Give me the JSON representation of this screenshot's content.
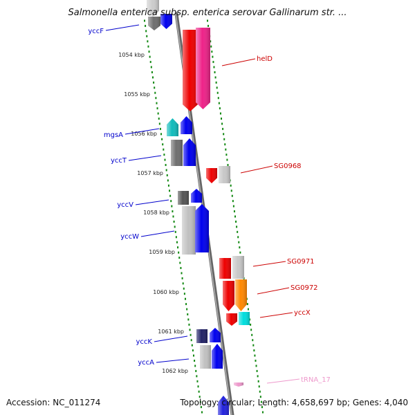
{
  "header": {
    "title": "Salmonella enterica subsp. enterica serovar Gallinarum str. ..."
  },
  "footer": {
    "accession": "Accession: NC_011274",
    "summary": "Topology: circular; Length: 4,658,697 bp; Genes: 4,040"
  },
  "colors": {
    "reverse_label": "#0000cc",
    "forward_label": "#cc0000",
    "trna_label": "#ee99cc",
    "tick": "#118811",
    "backbone": "#888888"
  },
  "scale_labels": [
    "1054 kbp",
    "1055 kbp",
    "1056 kbp",
    "1057 kbp",
    "1058 kbp",
    "1059 kbp",
    "1060 kbp",
    "1061 kbp",
    "1062 kbp"
  ],
  "gene_labels": [
    {
      "name": "yccF",
      "strand": "reverse"
    },
    {
      "name": "helD",
      "strand": "forward"
    },
    {
      "name": "mgsA",
      "strand": "reverse"
    },
    {
      "name": "yccT",
      "strand": "reverse"
    },
    {
      "name": "SG0968",
      "strand": "forward"
    },
    {
      "name": "yccV",
      "strand": "reverse"
    },
    {
      "name": "yccW",
      "strand": "reverse"
    },
    {
      "name": "SG0971",
      "strand": "forward"
    },
    {
      "name": "SG0972",
      "strand": "forward"
    },
    {
      "name": "yccX",
      "strand": "forward"
    },
    {
      "name": "yccK",
      "strand": "reverse"
    },
    {
      "name": "yccA",
      "strand": "reverse"
    },
    {
      "name": "tRNA_17",
      "strand": "trna"
    }
  ],
  "features": [
    {
      "id": "yccF-gray",
      "color": "#6e6e6e",
      "direction": "down"
    },
    {
      "id": "yccF-blue",
      "color": "#0000ee",
      "direction": "down"
    },
    {
      "id": "yccF-light",
      "color": "#cccccc",
      "direction": "down"
    },
    {
      "id": "helD-red",
      "color": "#ee0000",
      "direction": "down"
    },
    {
      "id": "helD-pink",
      "color": "#ee2288",
      "direction": "down"
    },
    {
      "id": "mgsA-cyan",
      "color": "#11bbbb",
      "direction": "up"
    },
    {
      "id": "mgsA-blue",
      "color": "#0000ee",
      "direction": "up"
    },
    {
      "id": "yccT-gray",
      "color": "#6e6e6e",
      "direction": "none"
    },
    {
      "id": "yccT-blue",
      "color": "#0000ee",
      "direction": "up"
    },
    {
      "id": "SG0968-red",
      "color": "#ee0000",
      "direction": "down"
    },
    {
      "id": "SG0968-light",
      "color": "#c8c8c8",
      "direction": "none"
    },
    {
      "id": "yccV-gray",
      "color": "#555555",
      "direction": "none"
    },
    {
      "id": "yccV-blue",
      "color": "#0000ee",
      "direction": "up"
    },
    {
      "id": "yccW-light",
      "color": "#c0c0c0",
      "direction": "none"
    },
    {
      "id": "yccW-blue",
      "color": "#0000ee",
      "direction": "up"
    },
    {
      "id": "SG0971-red",
      "color": "#ee0000",
      "direction": "none"
    },
    {
      "id": "SG0971-light",
      "color": "#c8c8c8",
      "direction": "none"
    },
    {
      "id": "SG0972-red",
      "color": "#ee0000",
      "direction": "down"
    },
    {
      "id": "SG0972-orange",
      "color": "#ff8800",
      "direction": "down"
    },
    {
      "id": "yccX-red",
      "color": "#ee0000",
      "direction": "down"
    },
    {
      "id": "yccX-cyan",
      "color": "#00dddd",
      "direction": "none"
    },
    {
      "id": "yccK-navy",
      "color": "#222266",
      "direction": "none"
    },
    {
      "id": "yccK-blue",
      "color": "#0000ee",
      "direction": "up"
    },
    {
      "id": "yccA-light",
      "color": "#c0c0c0",
      "direction": "none"
    },
    {
      "id": "yccA-blue",
      "color": "#0000ee",
      "direction": "up"
    },
    {
      "id": "tRNA_17-mark",
      "color": "#ee99cc",
      "direction": "down"
    },
    {
      "id": "bottom-blue",
      "color": "#2222dd",
      "direction": "up"
    }
  ]
}
